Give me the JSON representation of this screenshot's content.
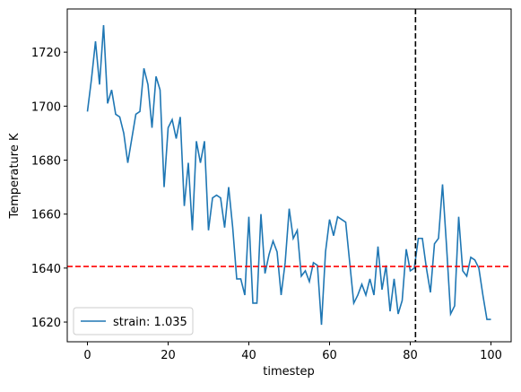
{
  "chart_data": {
    "type": "line",
    "x_label": "timestep",
    "y_label": "Temperature K",
    "x": [
      0,
      1,
      2,
      3,
      4,
      5,
      6,
      7,
      8,
      9,
      10,
      11,
      12,
      13,
      14,
      15,
      16,
      17,
      18,
      19,
      20,
      21,
      22,
      23,
      24,
      25,
      26,
      27,
      28,
      29,
      30,
      31,
      32,
      33,
      34,
      35,
      36,
      37,
      38,
      39,
      40,
      41,
      42,
      43,
      44,
      45,
      46,
      47,
      48,
      49,
      50,
      51,
      52,
      53,
      54,
      55,
      56,
      57,
      58,
      59,
      60,
      61,
      62,
      63,
      64,
      65,
      66,
      67,
      68,
      69,
      70,
      71,
      72,
      73,
      74,
      75,
      76,
      77,
      78,
      79,
      80,
      81,
      82,
      83,
      84,
      85,
      86,
      87,
      88,
      89,
      90,
      91,
      92,
      93,
      94,
      95,
      96,
      97,
      98,
      99,
      100
    ],
    "series": [
      {
        "name": "strain: 1.035",
        "color": "#1f77b4",
        "values": [
          1698,
          1710,
          1724,
          1708,
          1730,
          1701,
          1706,
          1697,
          1696,
          1690,
          1679,
          1688,
          1697,
          1698,
          1714,
          1708,
          1692,
          1711,
          1706,
          1670,
          1692,
          1695,
          1688,
          1696,
          1663,
          1679,
          1654,
          1687,
          1679,
          1687,
          1654,
          1666,
          1667,
          1666,
          1655,
          1670,
          1655,
          1636,
          1636,
          1630,
          1659,
          1627,
          1627,
          1660,
          1638,
          1645,
          1650,
          1646,
          1630,
          1642,
          1662,
          1651,
          1654,
          1637,
          1639,
          1635,
          1642,
          1641,
          1619,
          1646,
          1658,
          1652,
          1659,
          1658,
          1657,
          1642,
          1627,
          1630,
          1634,
          1630,
          1636,
          1630,
          1648,
          1632,
          1641,
          1624,
          1636,
          1623,
          1628,
          1647,
          1639,
          1640,
          1651,
          1651,
          1640,
          1631,
          1649,
          1651,
          1671,
          1648,
          1623,
          1626,
          1659,
          1639,
          1637,
          1644,
          1643,
          1640,
          1630,
          1621,
          1621
        ]
      }
    ],
    "hline": {
      "value": 1640.6,
      "color": "#ff0000"
    },
    "vline": {
      "value": 81.3,
      "color": "#000000"
    },
    "xlim": [
      -5,
      105
    ],
    "ylim": [
      1612.7,
      1736
    ],
    "xticks": [
      0,
      20,
      40,
      60,
      80,
      100
    ],
    "yticks": [
      1620,
      1640,
      1660,
      1680,
      1700,
      1720
    ],
    "legend": "lower left"
  }
}
